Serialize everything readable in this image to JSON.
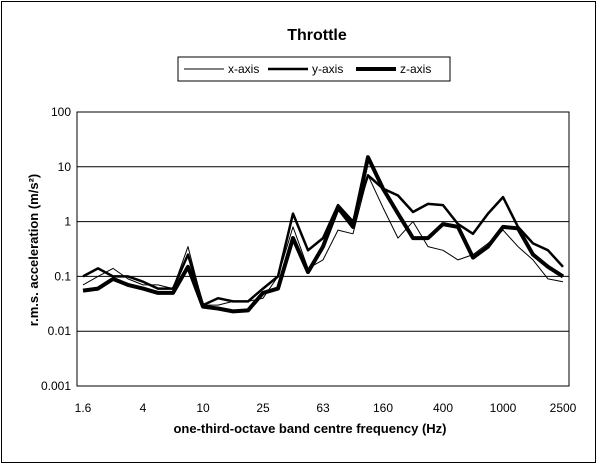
{
  "chart_data": {
    "type": "line",
    "title": "Throttle",
    "xlabel": "one-third-octave band centre frequency (Hz)",
    "ylabel": "r.m.s. acceleration (m/s²)",
    "yscale": "log",
    "ylim": [
      0.001,
      100
    ],
    "grid": "horizontal",
    "legend": "top",
    "x": [
      "1.6",
      "2",
      "2.5",
      "3.15",
      "4",
      "5",
      "6.3",
      "8",
      "10",
      "12.5",
      "16",
      "20",
      "25",
      "31.5",
      "40",
      "50",
      "63",
      "80",
      "100",
      "125",
      "160",
      "200",
      "250",
      "315",
      "400",
      "500",
      "630",
      "800",
      "1000",
      "1250",
      "1600",
      "2000",
      "2500"
    ],
    "xtick_labels": [
      "1.6",
      "4",
      "10",
      "25",
      "63",
      "160",
      "400",
      "1000",
      "2500"
    ],
    "ytick_labels": [
      "0.001",
      "0.01",
      "0.1",
      "1",
      "10",
      "100"
    ],
    "series": [
      {
        "name": "x-axis",
        "line_width": 1,
        "values": [
          0.07,
          0.1,
          0.14,
          0.09,
          0.07,
          0.07,
          0.06,
          0.35,
          0.03,
          0.03,
          0.035,
          0.035,
          0.04,
          0.1,
          0.8,
          0.14,
          0.2,
          0.7,
          0.6,
          7,
          1.8,
          0.5,
          1.0,
          0.35,
          0.3,
          0.2,
          0.25,
          0.4,
          0.7,
          0.35,
          0.2,
          0.09,
          0.08
        ]
      },
      {
        "name": "y-axis",
        "line_width": 2.5,
        "values": [
          0.1,
          0.14,
          0.1,
          0.1,
          0.08,
          0.06,
          0.06,
          0.25,
          0.03,
          0.04,
          0.035,
          0.035,
          0.06,
          0.1,
          1.4,
          0.3,
          0.5,
          2.0,
          1.0,
          7,
          4,
          3,
          1.5,
          2.1,
          2.0,
          0.9,
          0.6,
          1.4,
          2.8,
          0.8,
          0.4,
          0.3,
          0.15
        ]
      },
      {
        "name": "z-axis",
        "line_width": 4,
        "values": [
          0.055,
          0.06,
          0.09,
          0.07,
          0.06,
          0.05,
          0.05,
          0.15,
          0.028,
          0.026,
          0.023,
          0.024,
          0.05,
          0.06,
          0.5,
          0.12,
          0.35,
          1.8,
          0.8,
          15,
          4,
          1.4,
          0.5,
          0.5,
          0.9,
          0.8,
          0.22,
          0.35,
          0.8,
          0.75,
          0.25,
          0.15,
          0.1
        ]
      }
    ]
  }
}
